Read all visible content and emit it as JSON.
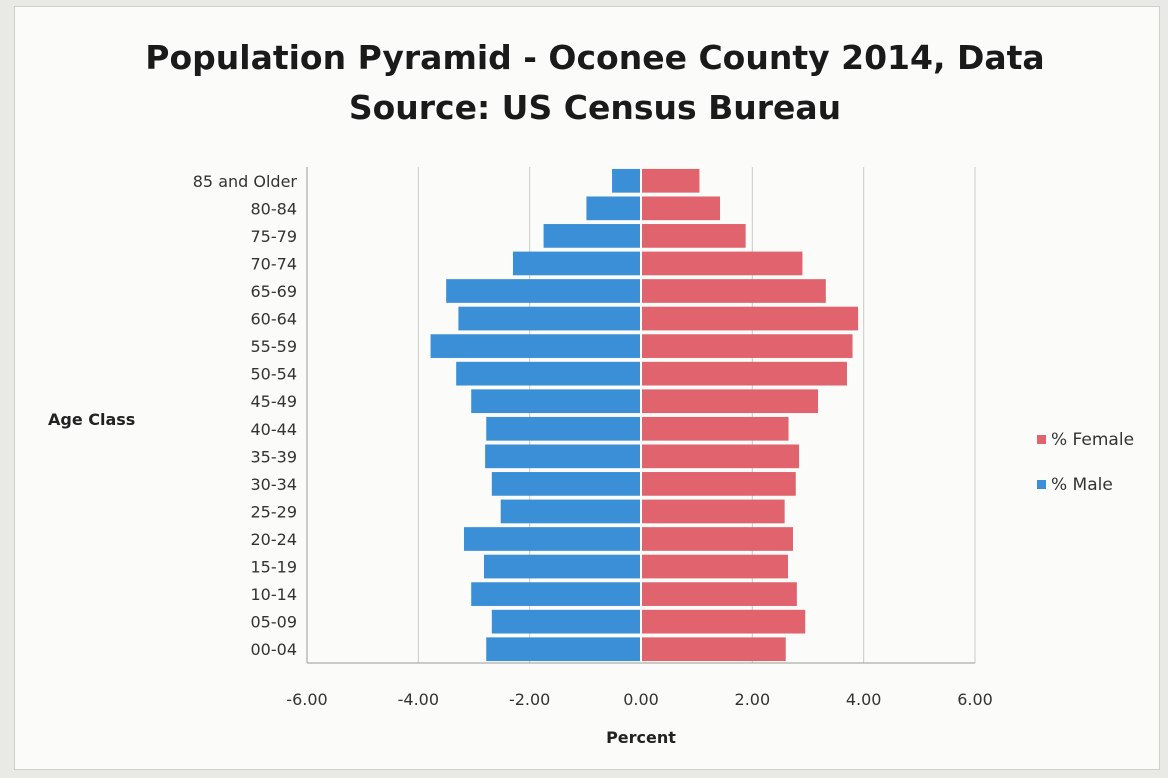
{
  "chart_data": {
    "type": "bar",
    "orientation": "horizontal",
    "title": "Population Pyramid - Oconee County 2014, Data Source: US Census Bureau",
    "title_lines": [
      "Population Pyramid - Oconee County 2014, Data",
      "Source: US Census Bureau"
    ],
    "xlabel": "Percent",
    "ylabel": "Age Class",
    "xlim": [
      -6,
      6
    ],
    "x_ticks": [
      -6,
      -4,
      -2,
      0,
      2,
      4,
      6
    ],
    "x_tick_labels": [
      "-6.00",
      "-4.00",
      "-2.00",
      "0.00",
      "2.00",
      "4.00",
      "6.00"
    ],
    "grid": "vertical",
    "legend_position": "right",
    "categories": [
      "85 and Older",
      "80-84",
      "75-79",
      "70-74",
      "65-69",
      "60-64",
      "55-59",
      "50-54",
      "45-49",
      "40-44",
      "35-39",
      "30-34",
      "25-29",
      "20-24",
      "15-19",
      "10-14",
      "05-09",
      "00-04"
    ],
    "series": [
      {
        "name": "% Female",
        "color": "#e0636e",
        "values": [
          1.05,
          1.42,
          1.88,
          2.9,
          3.32,
          3.9,
          3.8,
          3.7,
          3.18,
          2.65,
          2.84,
          2.78,
          2.58,
          2.73,
          2.64,
          2.8,
          2.95,
          2.6
        ]
      },
      {
        "name": "% Male",
        "color": "#3b8fd6",
        "values": [
          -0.52,
          -0.98,
          -1.75,
          -2.3,
          -3.5,
          -3.28,
          -3.78,
          -3.32,
          -3.05,
          -2.78,
          -2.8,
          -2.68,
          -2.52,
          -3.18,
          -2.82,
          -3.05,
          -2.68,
          -2.78
        ]
      }
    ]
  }
}
